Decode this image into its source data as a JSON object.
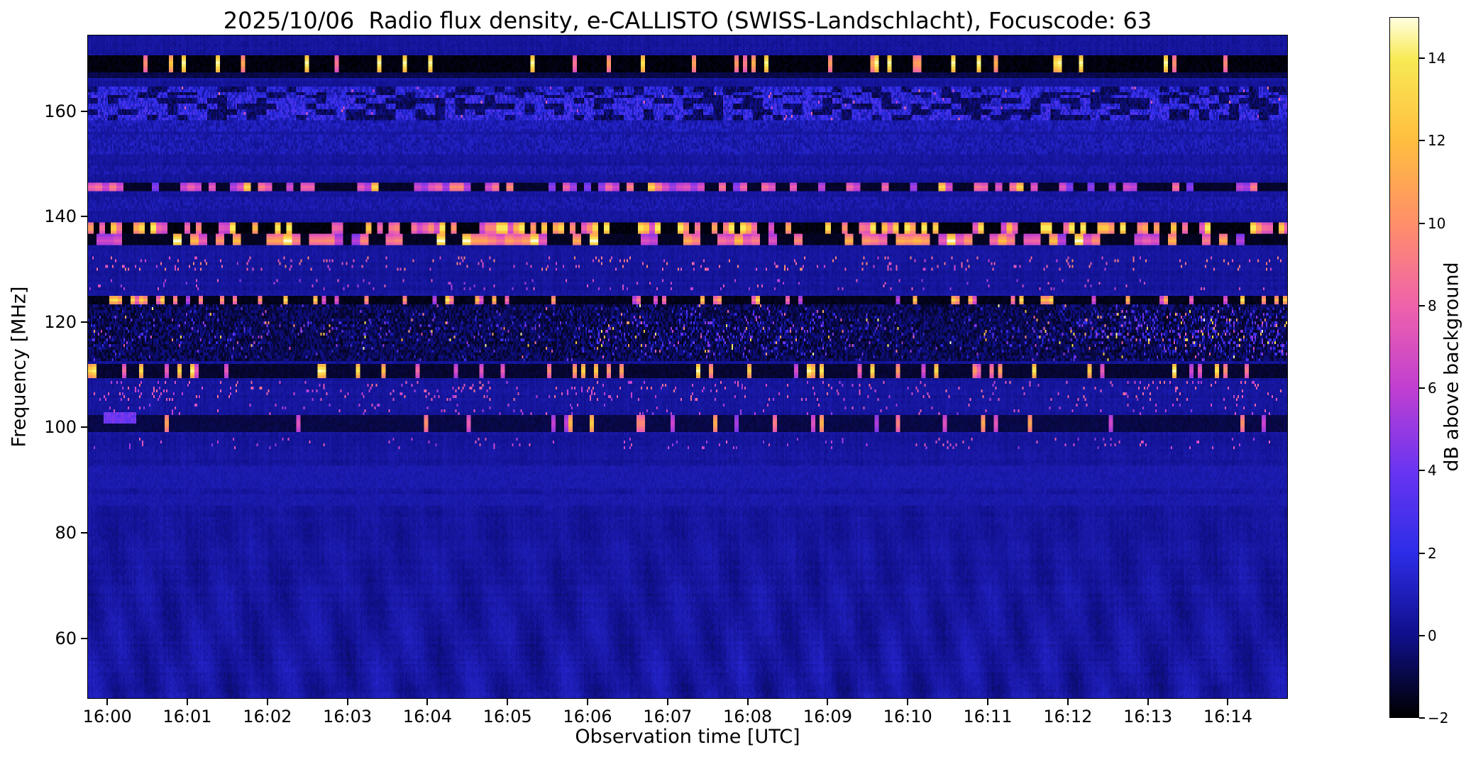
{
  "title": "2025/10/06  Radio flux density, e-CALLISTO (SWISS-Landschlacht), Focuscode: 63",
  "chart_data": {
    "type": "heatmap",
    "title": "2025/10/06  Radio flux density, e-CALLISTO (SWISS-Landschlacht), Focuscode: 63",
    "xlabel": "Observation time [UTC]",
    "ylabel": "Frequency [MHz]",
    "colorbar_label": "dB above background",
    "x_ticks": [
      "16:00",
      "16:01",
      "16:02",
      "16:03",
      "16:04",
      "16:05",
      "16:06",
      "16:07",
      "16:08",
      "16:09",
      "16:10",
      "16:11",
      "16:12",
      "16:13",
      "16:14"
    ],
    "x_range_minutes": [
      -0.25,
      14.75
    ],
    "y_ticks": [
      160,
      140,
      120,
      100,
      80,
      60
    ],
    "y_range_mhz": [
      48.5,
      174.5
    ],
    "z_ticks": [
      14,
      12,
      10,
      8,
      6,
      4,
      2,
      0,
      -2
    ],
    "z_tick_labels": [
      "14",
      "12",
      "10",
      "8",
      "6",
      "4",
      "2",
      "0",
      "−2"
    ],
    "z_range_db": [
      -2,
      15
    ],
    "grid": false,
    "legend": "colorbar-right",
    "colormap_stops": [
      {
        "v": -2,
        "color": "#000000"
      },
      {
        "v": 0,
        "color": "#10108c"
      },
      {
        "v": 2,
        "color": "#2d2de8"
      },
      {
        "v": 4,
        "color": "#6a35f2"
      },
      {
        "v": 6,
        "color": "#c13fd2"
      },
      {
        "v": 8,
        "color": "#ef62ab"
      },
      {
        "v": 10,
        "color": "#ff8f6a"
      },
      {
        "v": 12,
        "color": "#ffbe3f"
      },
      {
        "v": 14,
        "color": "#f8ea55"
      },
      {
        "v": 15,
        "color": "#ffffe0"
      }
    ],
    "background_db": 0.3,
    "ripple_below_mhz": 102,
    "bands": [
      {
        "f": 169.2,
        "hw": 1.6,
        "kind": "blackdash",
        "base": -2,
        "p": 0.13,
        "hi": 15,
        "seg": 3
      },
      {
        "f": 167.0,
        "hw": 0.7,
        "kind": "faint",
        "base": -1.2
      },
      {
        "f": 163.6,
        "hw": 1.3,
        "kind": "noisy",
        "base": 0.9,
        "var": 2.6
      },
      {
        "f": 160.9,
        "hw": 2.5,
        "kind": "noisy",
        "base": 1.1,
        "var": 3.0
      },
      {
        "f": 157.4,
        "hw": 1.0,
        "kind": "faintspeckle",
        "base": 0.6,
        "var": 1.4
      },
      {
        "f": 153.8,
        "hw": 1.7,
        "kind": "faintspeckle",
        "base": 0.5,
        "var": 1.3
      },
      {
        "f": 148.8,
        "hw": 0.8,
        "kind": "faintspeckle",
        "base": 0.4,
        "var": 1.0
      },
      {
        "f": 145.6,
        "hw": 0.9,
        "kind": "brightdash",
        "base": -1.6,
        "p": 0.5,
        "hi": 8.5,
        "seg": 5
      },
      {
        "f": 142.5,
        "hw": 1.4,
        "kind": "faintspeckle",
        "base": 0.4,
        "var": 1.0
      },
      {
        "f": 137.9,
        "hw": 1.0,
        "kind": "blackdash",
        "base": -2,
        "p": 0.52,
        "hi": 13,
        "seg": 4
      },
      {
        "f": 135.5,
        "hw": 1.1,
        "kind": "brightdash",
        "base": -1.7,
        "p": 0.42,
        "hi": 10,
        "seg": 6
      },
      {
        "f": 131.0,
        "hw": 1.3,
        "kind": "sparse",
        "base": 0.4,
        "p": 0.05,
        "hi": 10
      },
      {
        "f": 127.0,
        "hw": 1.0,
        "kind": "sparse",
        "base": 0.3,
        "p": 0.03,
        "hi": 8
      },
      {
        "f": 124.2,
        "hw": 0.7,
        "kind": "blackdash",
        "base": -1.8,
        "p": 0.2,
        "hi": 11,
        "seg": 3
      },
      {
        "f": 118.0,
        "hw": 5.3,
        "kind": "active",
        "base": -1.6
      },
      {
        "f": 110.8,
        "hw": 1.2,
        "kind": "blackdash",
        "base": -1.5,
        "p": 0.22,
        "hi": 12,
        "seg": 3
      },
      {
        "f": 107.0,
        "hw": 2.0,
        "kind": "sparse",
        "base": 0.2,
        "p": 0.05,
        "hi": 9
      },
      {
        "f": 103.5,
        "hw": 1.0,
        "kind": "sparse",
        "base": 0.2,
        "p": 0.03,
        "hi": 8
      },
      {
        "f": 100.8,
        "hw": 1.7,
        "kind": "darkdash",
        "base": -1.2,
        "p": 0.07,
        "hi": 10,
        "seg": 3
      },
      {
        "f": 96.8,
        "hw": 1.0,
        "kind": "sparse",
        "base": 0.2,
        "p": 0.03,
        "hi": 8
      },
      {
        "f": 90.5,
        "hw": 2.4,
        "kind": "faint",
        "base": 0.45
      },
      {
        "f": 86.0,
        "hw": 1.0,
        "kind": "faint",
        "base": 0.4
      },
      {
        "f": 101.8,
        "hw": 1.3,
        "kind": "streak",
        "t0": -0.05,
        "t1": 0.35,
        "v": 3.4
      }
    ]
  }
}
